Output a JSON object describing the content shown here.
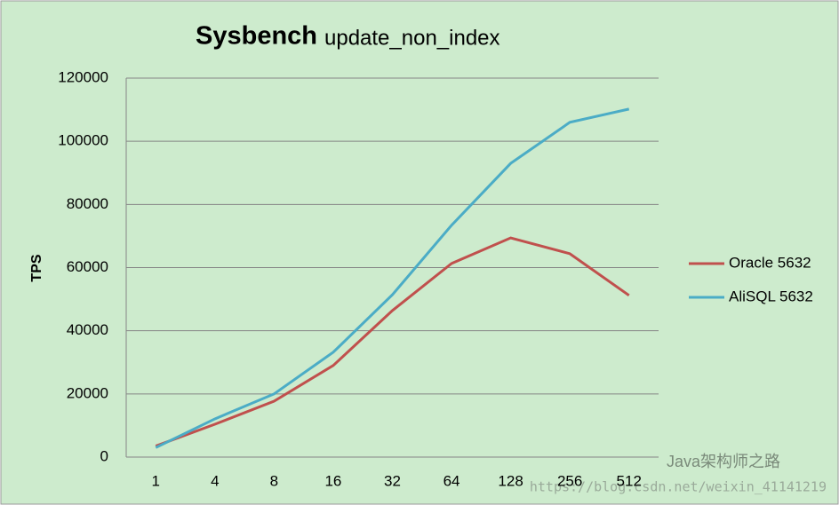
{
  "chart_data": {
    "type": "line",
    "title": "Sysbench",
    "subtitle": "update_non_index",
    "y_label": "TPS",
    "categories": [
      "1",
      "4",
      "8",
      "16",
      "32",
      "64",
      "128",
      "256",
      "512"
    ],
    "series": [
      {
        "name": "Oracle 5632",
        "color": "#c0504d",
        "values": [
          3500,
          10400,
          17700,
          29000,
          46400,
          61300,
          69400,
          64400,
          51200
        ]
      },
      {
        "name": "AliSQL 5632",
        "color": "#4bacc6",
        "values": [
          3000,
          12100,
          20000,
          33200,
          51400,
          73400,
          93000,
          106000,
          110200
        ]
      }
    ],
    "ylim": [
      0,
      120000
    ],
    "yticks": [
      0,
      20000,
      40000,
      60000,
      80000,
      100000,
      120000
    ],
    "grid": true,
    "legend": "right",
    "watermark": "Java架构师之路",
    "watermark_url": "https://blog.csdn.net/weixin_41141219"
  }
}
